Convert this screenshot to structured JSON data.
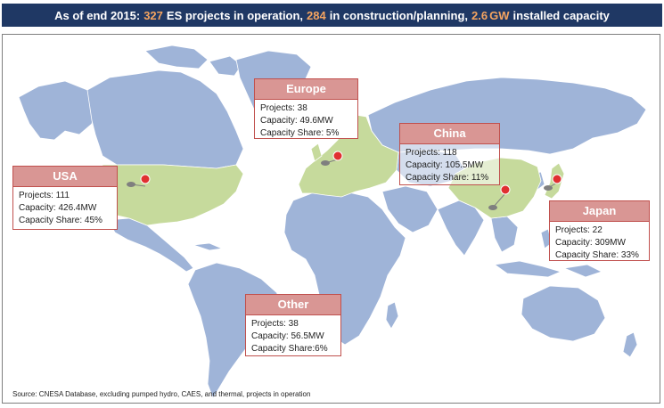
{
  "banner": {
    "prefix": "As of end 2015:",
    "projects_operation": "327",
    "text_operation": "ES projects in operation,",
    "projects_planning": "284",
    "text_planning": "in construction/planning,",
    "capacity": "2.6",
    "capacity_unit": "GW",
    "text_capacity": "installed capacity"
  },
  "colors": {
    "ocean": "#ffffff",
    "land": "#9fb4d8",
    "highlight_land": "#c6da9c",
    "callout_header": "#d99694",
    "callout_border": "#c0504d",
    "banner_bg": "#1f3864",
    "banner_highlight": "#f4a460"
  },
  "regions": [
    {
      "name": "Europe",
      "projects": "Projects: 38",
      "capacity": "Capacity: 49.6MW",
      "share": "Capacity Share: 5%"
    },
    {
      "name": "China",
      "projects": "Projects: 118",
      "capacity": "Capacity: 105.5MW",
      "share": "Capacity Share: 11%"
    },
    {
      "name": "USA",
      "projects": "Projects: 111",
      "capacity": "Capacity: 426.4MW",
      "share": "Capacity Share: 45%"
    },
    {
      "name": "Japan",
      "projects": "Projects: 22",
      "capacity": "Capacity: 309MW",
      "share": "Capacity Share: 33%"
    },
    {
      "name": "Other",
      "projects": "Projects: 38",
      "capacity": "Capacity: 56.5MW",
      "share": "Capacity Share:6%"
    }
  ],
  "pins": [
    "map-pin-icon",
    "map-pin-icon",
    "map-pin-icon",
    "map-pin-icon"
  ],
  "source": "Source: CNESA Database, excluding pumped hydro, CAES, and thermal, projects in operation"
}
